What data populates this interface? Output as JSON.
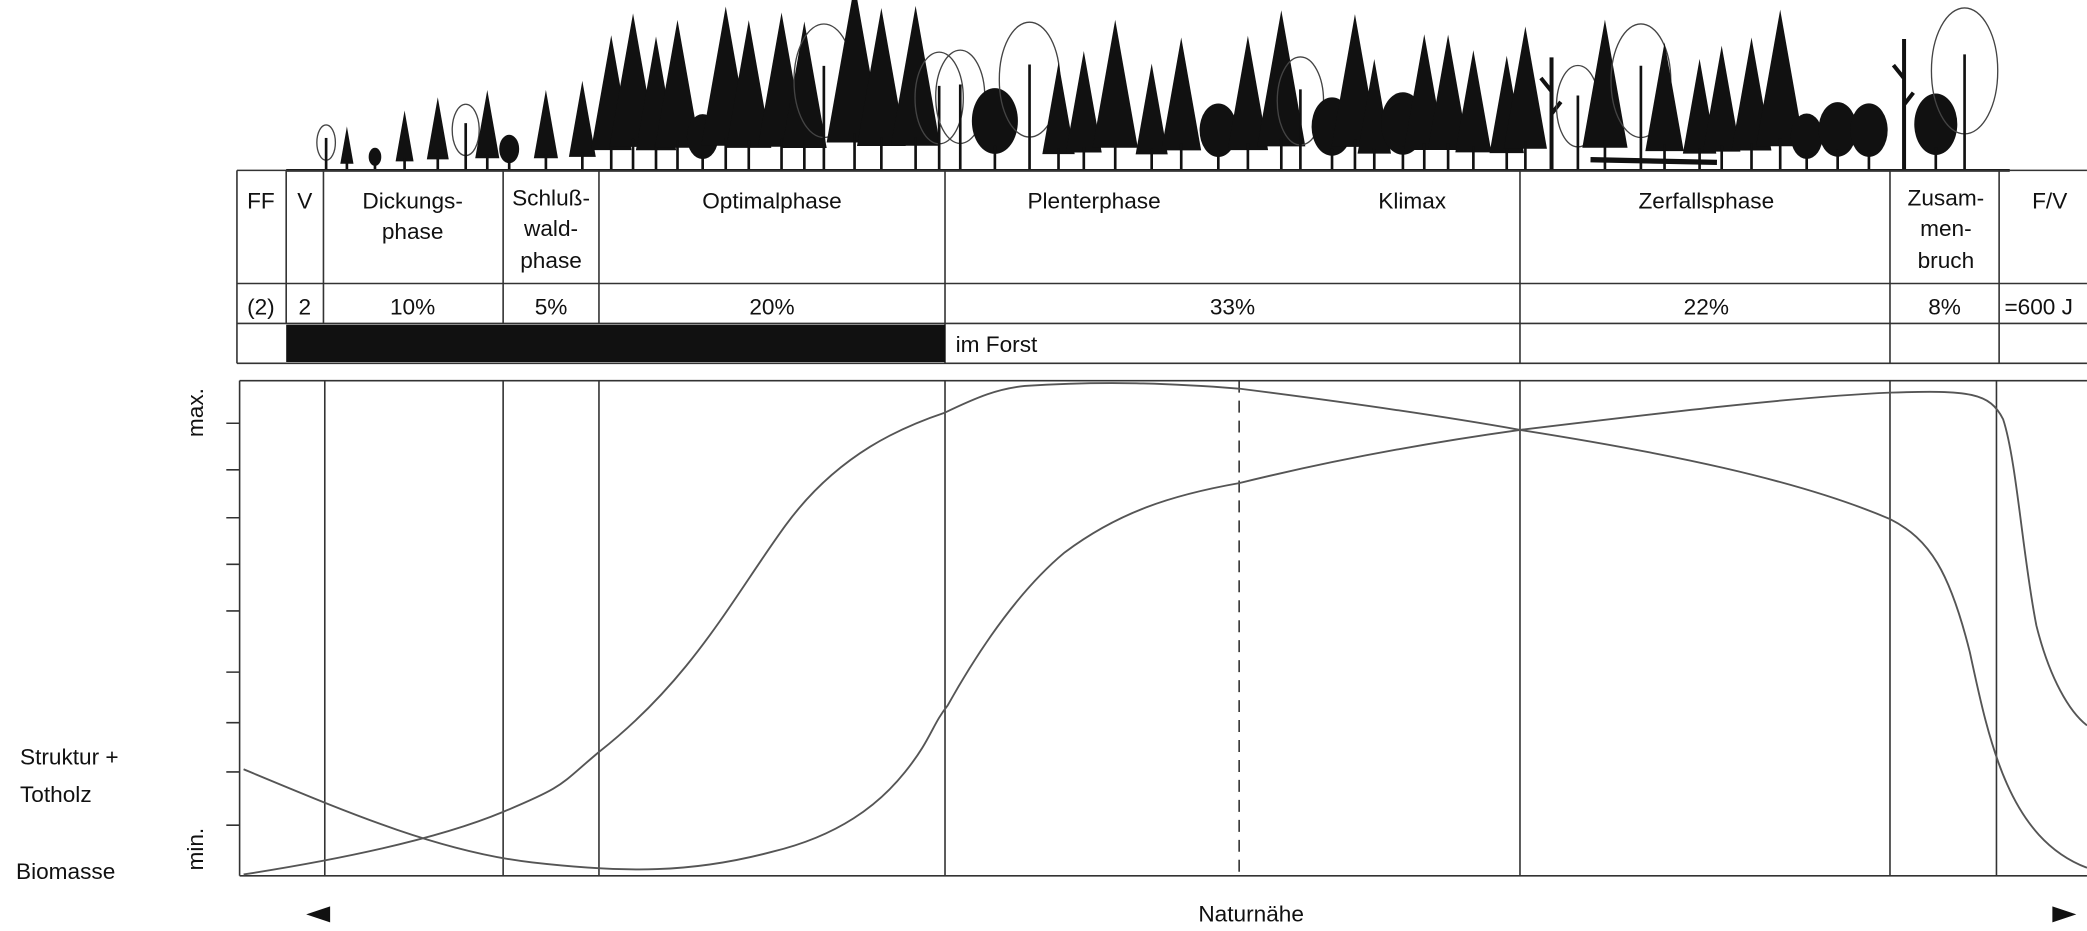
{
  "table": {
    "columns": [
      {
        "header": [
          "FF"
        ],
        "share": "(2)"
      },
      {
        "header": [
          "V"
        ],
        "share": "2"
      },
      {
        "header": [
          "Dickungs-",
          "phase"
        ],
        "share": "10%"
      },
      {
        "header": [
          "Schluß-",
          "wald-",
          "phase"
        ],
        "share": "5%"
      },
      {
        "header": [
          "Optimalphase"
        ],
        "share": "20%"
      },
      {
        "header": [
          "Plenterphase"
        ],
        "header_right": [
          "Klimax"
        ],
        "share": "33%"
      },
      {
        "header": [
          "Zerfallsphase"
        ],
        "share": "22%"
      },
      {
        "header": [
          "Zusam-",
          "men-",
          "bruch"
        ],
        "share": "8%"
      },
      {
        "header": [
          "F/V"
        ],
        "share": "=600 J"
      }
    ],
    "forest_row": "im Forst"
  },
  "chart": {
    "y_max": "max.",
    "y_min": "min.",
    "structure_label": [
      "Struktur +",
      "Totholz"
    ],
    "biomass_label": "Biomasse",
    "x_label": "Naturnähe"
  }
}
